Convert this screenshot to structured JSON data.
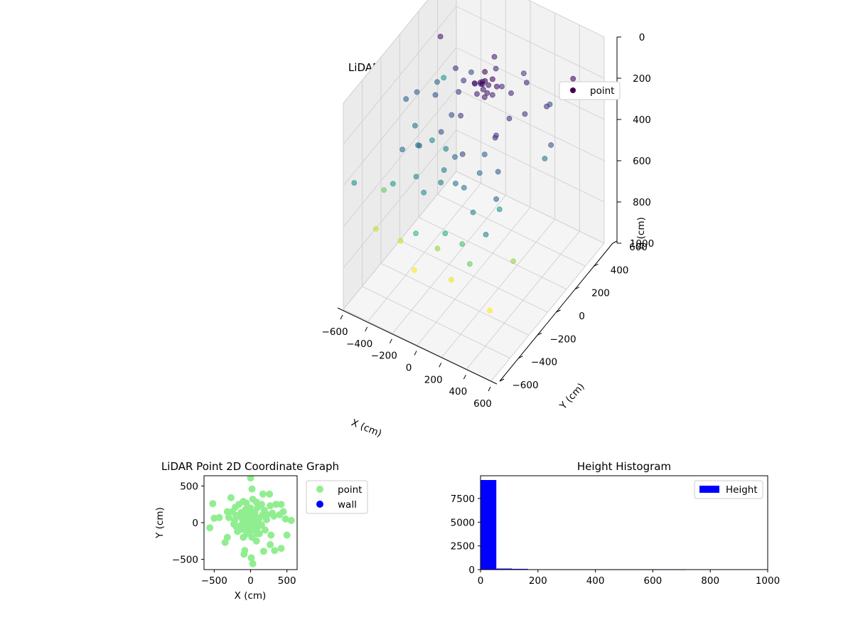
{
  "chart_data": [
    {
      "type": "scatter",
      "projection": "3d",
      "title": "LiDAR Point 3D Coordinate Graph",
      "xlabel": "X (cm)",
      "ylabel": "Y (cm)",
      "zlabel": "H (cm)",
      "xlim": [
        -600,
        600
      ],
      "ylim": [
        -600,
        600
      ],
      "zlim": [
        0,
        1000
      ],
      "z_inverted": true,
      "xticks": [
        -600,
        -400,
        -200,
        0,
        200,
        400,
        600
      ],
      "yticks": [
        -600,
        -400,
        -200,
        0,
        200,
        400,
        600
      ],
      "zticks": [
        0,
        200,
        400,
        600,
        800,
        1000
      ],
      "grid": true,
      "legend": {
        "placement": "top-right",
        "entries": [
          "point"
        ]
      },
      "colormap": "viridis",
      "color_by": "H (cm)",
      "series": [
        {
          "name": "point",
          "note_dense_core": "dense cluster near x≈0, y≈100, h≈120–170",
          "points": [
            [
              0,
              120,
              120
            ],
            [
              20,
              130,
              140
            ],
            [
              -30,
              110,
              130
            ],
            [
              40,
              90,
              150
            ],
            [
              -50,
              140,
              160
            ],
            [
              10,
              80,
              110
            ],
            [
              60,
              120,
              170
            ],
            [
              -70,
              100,
              140
            ],
            [
              30,
              160,
              125
            ],
            [
              -20,
              60,
              155
            ],
            [
              80,
              140,
              135
            ],
            [
              -90,
              130,
              165
            ],
            [
              50,
              50,
              145
            ],
            [
              -40,
              170,
              115
            ],
            [
              0,
              100,
              150
            ],
            [
              150,
              200,
              180
            ],
            [
              -200,
              100,
              220
            ],
            [
              250,
              -100,
              200
            ],
            [
              -150,
              -150,
              260
            ],
            [
              100,
              -250,
              240
            ],
            [
              -300,
              200,
              190
            ],
            [
              300,
              150,
              210
            ],
            [
              -250,
              -250,
              300
            ],
            [
              200,
              300,
              170
            ],
            [
              -100,
              350,
              160
            ],
            [
              350,
              -200,
              280
            ],
            [
              -350,
              50,
              250
            ],
            [
              120,
              -350,
              320
            ],
            [
              -120,
              250,
              230
            ],
            [
              250,
              50,
              190
            ],
            [
              -180,
              0,
              270
            ],
            [
              180,
              -120,
              290
            ],
            [
              0,
              -200,
              310
            ],
            [
              -50,
              300,
              175
            ],
            [
              400,
              250,
              200
            ],
            [
              -400,
              -100,
              330
            ],
            [
              60,
              220,
              185
            ],
            [
              -60,
              -60,
              205
            ],
            [
              220,
              -50,
              225
            ],
            [
              -220,
              180,
              215
            ],
            [
              -500,
              50,
              280
            ],
            [
              -350,
              -300,
              320
            ],
            [
              450,
              -350,
              300
            ],
            [
              -250,
              300,
              250
            ],
            [
              300,
              -400,
              380
            ],
            [
              -100,
              -400,
              400
            ],
            [
              150,
              -300,
              360
            ],
            [
              -450,
              200,
              300
            ],
            [
              500,
              100,
              340
            ],
            [
              0,
              -350,
              350
            ],
            [
              -200,
              -350,
              380
            ],
            [
              350,
              350,
              260
            ],
            [
              -300,
              -200,
              340
            ],
            [
              200,
              -200,
              330
            ],
            [
              100,
              400,
              210
            ],
            [
              -50,
              -250,
              360
            ],
            [
              -300,
              -50,
              400
            ],
            [
              400,
              -250,
              420
            ],
            [
              -150,
              -100,
              370
            ],
            [
              -500,
              300,
              150
            ],
            [
              500,
              400,
              120
            ],
            [
              550,
              100,
              260
            ],
            [
              -550,
              0,
              300
            ],
            [
              480,
              -500,
              380
            ],
            [
              -50,
              -550,
              500
            ],
            [
              150,
              -500,
              470
            ],
            [
              -350,
              -400,
              430
            ],
            [
              250,
              -450,
              520
            ],
            [
              -500,
              -300,
              560
            ],
            [
              550,
              -300,
              600
            ],
            [
              -100,
              -500,
              720
            ],
            [
              200,
              -500,
              680
            ],
            [
              50,
              -450,
              600
            ],
            [
              -250,
              -450,
              650
            ],
            [
              -550,
              -550,
              400
            ],
            [
              550,
              -550,
              700
            ],
            [
              -450,
              -450,
              650
            ],
            [
              350,
              -500,
              560
            ],
            [
              -550,
              400,
              420
            ]
          ]
        }
      ]
    },
    {
      "type": "scatter",
      "title": "LiDAR Point 2D Coordinate Graph",
      "xlabel": "X (cm)",
      "ylabel": "Y (cm)",
      "xlim": [
        -640,
        640
      ],
      "ylim": [
        -640,
        640
      ],
      "xticks": [
        -500,
        0,
        500
      ],
      "yticks": [
        -500,
        0,
        500
      ],
      "grid": false,
      "legend": {
        "placement": "outside-right",
        "entries": [
          "point",
          "wall"
        ]
      },
      "series": [
        {
          "name": "point",
          "color": "#90ee90",
          "points": [
            [
              0,
              610
            ],
            [
              20,
              460
            ],
            [
              -100,
              290
            ],
            [
              -60,
              270
            ],
            [
              30,
              320
            ],
            [
              80,
              280
            ],
            [
              170,
              390
            ],
            [
              260,
              390
            ],
            [
              -270,
              340
            ],
            [
              -320,
              150
            ],
            [
              -210,
              210
            ],
            [
              -250,
              150
            ],
            [
              -160,
              250
            ],
            [
              -520,
              260
            ],
            [
              -500,
              60
            ],
            [
              -430,
              70
            ],
            [
              -560,
              -70
            ],
            [
              -300,
              70
            ],
            [
              -200,
              100
            ],
            [
              -130,
              140
            ],
            [
              -70,
              180
            ],
            [
              0,
              200
            ],
            [
              100,
              210
            ],
            [
              150,
              250
            ],
            [
              190,
              170
            ],
            [
              230,
              110
            ],
            [
              270,
              230
            ],
            [
              300,
              130
            ],
            [
              350,
              250
            ],
            [
              420,
              250
            ],
            [
              450,
              150
            ],
            [
              480,
              50
            ],
            [
              560,
              30
            ],
            [
              500,
              -170
            ],
            [
              420,
              -350
            ],
            [
              330,
              -380
            ],
            [
              270,
              -300
            ],
            [
              180,
              -390
            ],
            [
              280,
              -170
            ],
            [
              200,
              -100
            ],
            [
              120,
              -150
            ],
            [
              80,
              -250
            ],
            [
              20,
              -200
            ],
            [
              -50,
              -150
            ],
            [
              -100,
              -200
            ],
            [
              -180,
              -120
            ],
            [
              -200,
              -50
            ],
            [
              -220,
              30
            ],
            [
              -120,
              60
            ],
            [
              -60,
              90
            ],
            [
              0,
              130
            ],
            [
              60,
              100
            ],
            [
              120,
              60
            ],
            [
              150,
              -30
            ],
            [
              100,
              -60
            ],
            [
              50,
              -100
            ],
            [
              -30,
              -80
            ],
            [
              -80,
              -20
            ],
            [
              -140,
              -40
            ],
            [
              -30,
              30
            ],
            [
              30,
              10
            ],
            [
              0,
              -40
            ],
            [
              20,
              60
            ],
            [
              -40,
              60
            ],
            [
              70,
              30
            ],
            [
              -80,
              -380
            ],
            [
              -90,
              -430
            ],
            [
              10,
              -480
            ],
            [
              30,
              -560
            ],
            [
              -320,
              -200
            ],
            [
              -350,
              -270
            ],
            [
              320,
              90
            ],
            [
              400,
              110
            ],
            [
              -20,
              0
            ],
            [
              10,
              20
            ],
            [
              40,
              -30
            ],
            [
              -60,
              10
            ],
            [
              0,
              80
            ],
            [
              -100,
              30
            ],
            [
              110,
              -20
            ],
            [
              60,
              150
            ],
            [
              -150,
              90
            ],
            [
              160,
              100
            ],
            [
              -10,
              -120
            ],
            [
              90,
              -150
            ],
            [
              -120,
              -90
            ],
            [
              220,
              40
            ],
            [
              -230,
              -20
            ]
          ]
        },
        {
          "name": "wall",
          "color": "#0000ff",
          "points": []
        }
      ]
    },
    {
      "type": "bar",
      "subtype": "histogram",
      "title": "Height Histogram",
      "xlabel": "",
      "ylabel": "",
      "xlim": [
        0,
        1000
      ],
      "ylim": [
        0,
        9900
      ],
      "xticks": [
        0,
        200,
        400,
        600,
        800,
        1000
      ],
      "yticks": [
        0,
        2500,
        5000,
        7500
      ],
      "grid": false,
      "legend": {
        "placement": "top-right",
        "entries": [
          "Height"
        ]
      },
      "series": [
        {
          "name": "Height",
          "color": "#0000ff",
          "bins": [
            {
              "start": 0,
              "end": 55,
              "count": 9450
            },
            {
              "start": 55,
              "end": 110,
              "count": 110
            },
            {
              "start": 110,
              "end": 165,
              "count": 80
            },
            {
              "start": 165,
              "end": 220,
              "count": 15
            },
            {
              "start": 220,
              "end": 275,
              "count": 6
            },
            {
              "start": 275,
              "end": 330,
              "count": 4
            },
            {
              "start": 330,
              "end": 385,
              "count": 3
            },
            {
              "start": 385,
              "end": 440,
              "count": 3
            },
            {
              "start": 440,
              "end": 495,
              "count": 2
            },
            {
              "start": 495,
              "end": 550,
              "count": 2
            },
            {
              "start": 550,
              "end": 605,
              "count": 1
            },
            {
              "start": 605,
              "end": 660,
              "count": 1
            },
            {
              "start": 660,
              "end": 715,
              "count": 1
            }
          ]
        }
      ]
    }
  ]
}
